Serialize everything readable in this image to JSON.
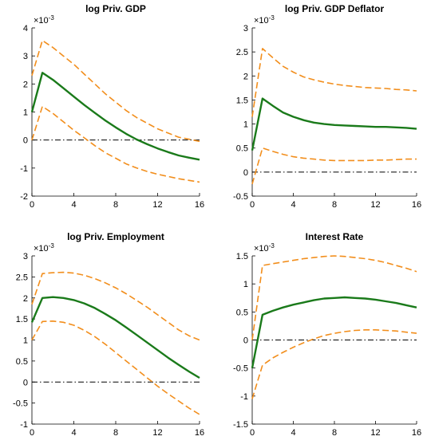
{
  "chart_data": [
    {
      "type": "line",
      "title": "log Priv. GDP",
      "xlabel": "",
      "ylabel": "",
      "y_multiplier": "×10-3",
      "xlim": [
        0,
        16
      ],
      "ylim": [
        -2,
        4
      ],
      "xticks": [
        0,
        4,
        8,
        12,
        16
      ],
      "yticks": [
        -2,
        -1,
        0,
        1,
        2,
        3,
        4
      ],
      "grid": false,
      "zero_line": true,
      "x": [
        0,
        1,
        2,
        3,
        4,
        5,
        6,
        7,
        8,
        9,
        10,
        11,
        12,
        13,
        14,
        15,
        16
      ],
      "series": [
        {
          "role": "upper",
          "color": "#f28e1c",
          "style": "dashed",
          "values": [
            2.3,
            3.55,
            3.3,
            3.0,
            2.7,
            2.35,
            2.0,
            1.65,
            1.35,
            1.05,
            0.8,
            0.6,
            0.4,
            0.25,
            0.1,
            0.03,
            -0.05
          ]
        },
        {
          "role": "median",
          "color": "#1a7a1a",
          "style": "solid",
          "values": [
            1.0,
            2.4,
            2.15,
            1.85,
            1.55,
            1.25,
            0.97,
            0.7,
            0.45,
            0.22,
            0.02,
            -0.15,
            -0.3,
            -0.43,
            -0.55,
            -0.63,
            -0.7
          ]
        },
        {
          "role": "lower",
          "color": "#f28e1c",
          "style": "dashed",
          "values": [
            0.0,
            1.2,
            0.95,
            0.65,
            0.35,
            0.08,
            -0.2,
            -0.45,
            -0.65,
            -0.85,
            -1.0,
            -1.12,
            -1.22,
            -1.3,
            -1.38,
            -1.44,
            -1.5
          ]
        }
      ]
    },
    {
      "type": "line",
      "title": "log Priv. GDP Deflator",
      "xlabel": "",
      "ylabel": "",
      "y_multiplier": "×10-3",
      "xlim": [
        0,
        16
      ],
      "ylim": [
        -0.5,
        3
      ],
      "xticks": [
        0,
        4,
        8,
        12,
        16
      ],
      "yticks": [
        -0.5,
        0,
        0.5,
        1,
        1.5,
        2,
        2.5,
        3
      ],
      "grid": false,
      "zero_line": true,
      "x": [
        0,
        1,
        2,
        3,
        4,
        5,
        6,
        7,
        8,
        9,
        10,
        11,
        12,
        13,
        14,
        15,
        16
      ],
      "series": [
        {
          "role": "upper",
          "color": "#f28e1c",
          "style": "dashed",
          "values": [
            1.15,
            2.57,
            2.38,
            2.2,
            2.08,
            1.98,
            1.92,
            1.87,
            1.83,
            1.8,
            1.78,
            1.76,
            1.75,
            1.74,
            1.72,
            1.71,
            1.69
          ]
        },
        {
          "role": "median",
          "color": "#1a7a1a",
          "style": "solid",
          "values": [
            0.45,
            1.53,
            1.38,
            1.24,
            1.15,
            1.08,
            1.03,
            1.0,
            0.98,
            0.97,
            0.96,
            0.95,
            0.94,
            0.94,
            0.93,
            0.92,
            0.9
          ]
        },
        {
          "role": "lower",
          "color": "#f28e1c",
          "style": "dashed",
          "values": [
            -0.25,
            0.5,
            0.43,
            0.37,
            0.32,
            0.29,
            0.27,
            0.25,
            0.24,
            0.24,
            0.24,
            0.24,
            0.25,
            0.25,
            0.26,
            0.27,
            0.27
          ]
        }
      ]
    },
    {
      "type": "line",
      "title": "log Priv. Employment",
      "xlabel": "",
      "ylabel": "",
      "y_multiplier": "×10-3",
      "xlim": [
        0,
        16
      ],
      "ylim": [
        -1,
        3
      ],
      "xticks": [
        0,
        4,
        8,
        12,
        16
      ],
      "yticks": [
        -1,
        -0.5,
        0,
        0.5,
        1,
        1.5,
        2,
        2.5,
        3
      ],
      "grid": false,
      "zero_line": true,
      "x": [
        0,
        1,
        2,
        3,
        4,
        5,
        6,
        7,
        8,
        9,
        10,
        11,
        12,
        13,
        14,
        15,
        16
      ],
      "series": [
        {
          "role": "upper",
          "color": "#f28e1c",
          "style": "dashed",
          "values": [
            1.85,
            2.58,
            2.6,
            2.61,
            2.59,
            2.54,
            2.46,
            2.36,
            2.24,
            2.1,
            1.94,
            1.78,
            1.6,
            1.42,
            1.24,
            1.1,
            1.0
          ]
        },
        {
          "role": "median",
          "color": "#1a7a1a",
          "style": "solid",
          "values": [
            1.42,
            2.0,
            2.02,
            2.0,
            1.95,
            1.87,
            1.76,
            1.62,
            1.47,
            1.3,
            1.12,
            0.94,
            0.76,
            0.58,
            0.41,
            0.25,
            0.1
          ]
        },
        {
          "role": "lower",
          "color": "#f28e1c",
          "style": "dashed",
          "values": [
            1.0,
            1.44,
            1.45,
            1.42,
            1.35,
            1.23,
            1.08,
            0.9,
            0.7,
            0.5,
            0.3,
            0.1,
            -0.1,
            -0.28,
            -0.45,
            -0.62,
            -0.77
          ]
        }
      ]
    },
    {
      "type": "line",
      "title": "Interest Rate",
      "xlabel": "",
      "ylabel": "",
      "y_multiplier": "×10-3",
      "xlim": [
        0,
        16
      ],
      "ylim": [
        -1.5,
        1.5
      ],
      "xticks": [
        0,
        4,
        8,
        12,
        16
      ],
      "yticks": [
        -1.5,
        -1,
        -0.5,
        0,
        0.5,
        1,
        1.5
      ],
      "grid": false,
      "zero_line": true,
      "x": [
        0,
        1,
        2,
        3,
        4,
        5,
        6,
        7,
        8,
        9,
        10,
        11,
        12,
        13,
        14,
        15,
        16
      ],
      "series": [
        {
          "role": "upper",
          "color": "#f28e1c",
          "style": "dashed",
          "values": [
            0.0,
            1.33,
            1.36,
            1.39,
            1.42,
            1.45,
            1.47,
            1.49,
            1.5,
            1.49,
            1.47,
            1.45,
            1.42,
            1.38,
            1.33,
            1.28,
            1.22
          ]
        },
        {
          "role": "median",
          "color": "#1a7a1a",
          "style": "solid",
          "values": [
            -0.5,
            0.45,
            0.52,
            0.58,
            0.63,
            0.67,
            0.71,
            0.74,
            0.75,
            0.76,
            0.75,
            0.74,
            0.72,
            0.69,
            0.66,
            0.62,
            0.58
          ]
        },
        {
          "role": "lower",
          "color": "#f28e1c",
          "style": "dashed",
          "values": [
            -1.05,
            -0.45,
            -0.32,
            -0.22,
            -0.13,
            -0.05,
            0.02,
            0.08,
            0.12,
            0.15,
            0.17,
            0.18,
            0.18,
            0.17,
            0.16,
            0.14,
            0.12
          ]
        }
      ]
    }
  ]
}
